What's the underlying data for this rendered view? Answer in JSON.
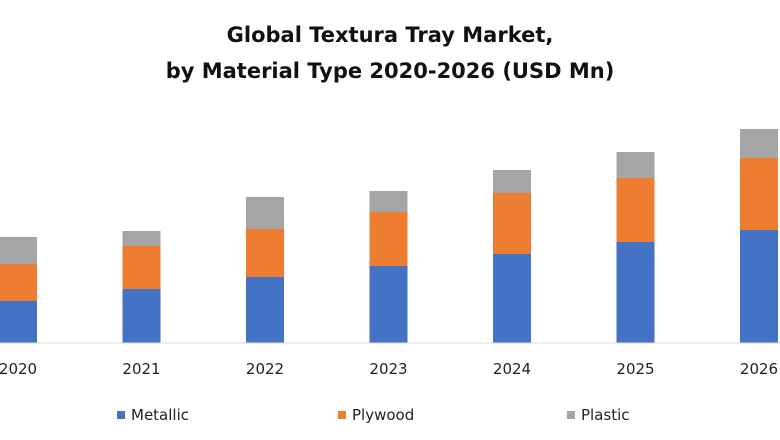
{
  "chart_data": {
    "type": "bar",
    "stacked": true,
    "title_line1": "Global  Textura Tray Market,",
    "title_line2": "by Material Type 2020-2026 (USD Mn)",
    "categories": [
      "2020",
      "2021",
      "2022",
      "2023",
      "2024",
      "2025",
      "2026"
    ],
    "series": [
      {
        "name": "Metallic",
        "color": "#4472C4",
        "values": [
          42,
          54,
          66,
          77,
          89,
          101,
          113
        ]
      },
      {
        "name": "Plywood",
        "color": "#ED7D31",
        "values": [
          37,
          43,
          48,
          54,
          61,
          64,
          72
        ]
      },
      {
        "name": "Plastic",
        "color": "#A5A5A5",
        "values": [
          27,
          15,
          32,
          21,
          23,
          26,
          29
        ]
      }
    ],
    "legend_position": "bottom",
    "grid": false
  }
}
